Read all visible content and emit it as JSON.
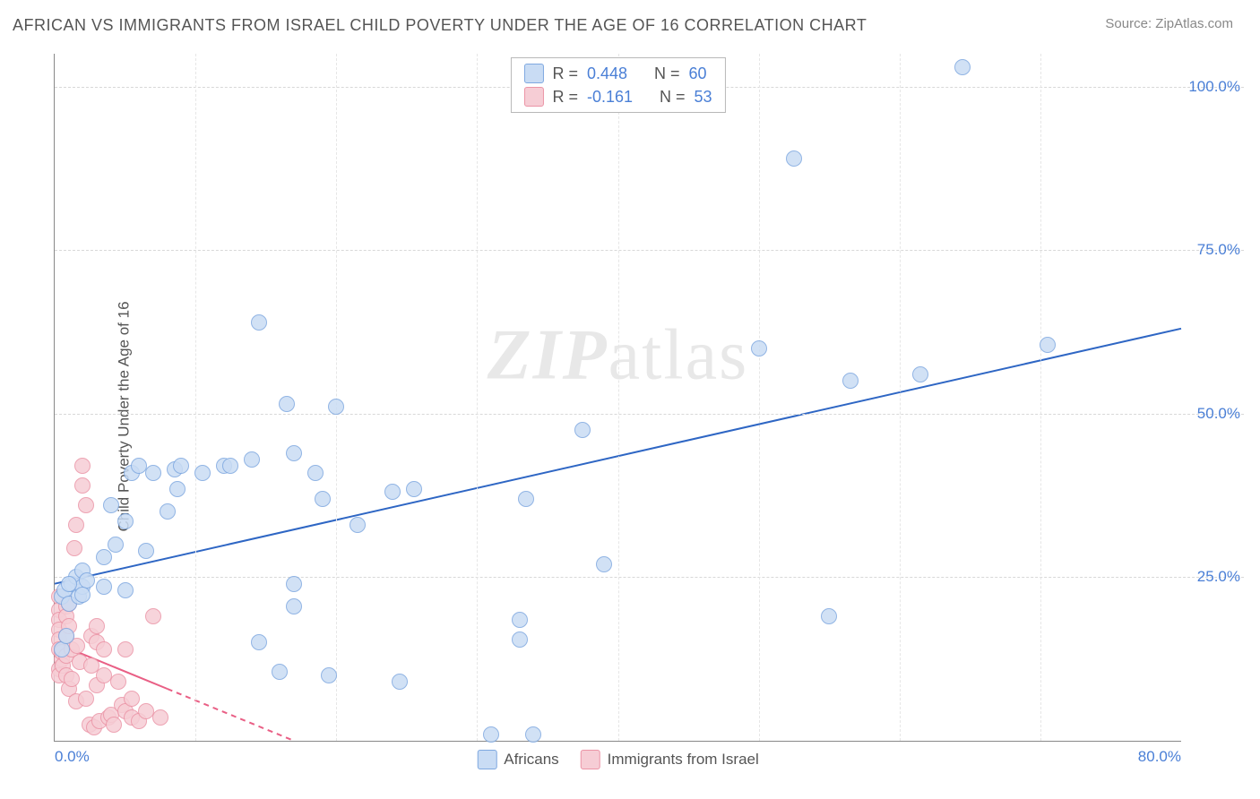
{
  "header": {
    "title": "AFRICAN VS IMMIGRANTS FROM ISRAEL CHILD POVERTY UNDER THE AGE OF 16 CORRELATION CHART",
    "source_prefix": "Source: ",
    "source_name": "ZipAtlas.com"
  },
  "ylabel": "Child Poverty Under the Age of 16",
  "watermark": {
    "z": "ZIP",
    "rest": "atlas"
  },
  "axes": {
    "xlim": [
      0,
      80
    ],
    "ylim": [
      0,
      105
    ],
    "yticks": [
      {
        "v": 25,
        "label": "25.0%"
      },
      {
        "v": 50,
        "label": "50.0%"
      },
      {
        "v": 75,
        "label": "75.0%"
      },
      {
        "v": 100,
        "label": "100.0%"
      }
    ],
    "xticks": [
      {
        "v": 0,
        "label": "0.0%",
        "cls": "first"
      },
      {
        "v": 80,
        "label": "80.0%",
        "cls": "last"
      }
    ],
    "xgrid": [
      10,
      20,
      30,
      40,
      50,
      60,
      70
    ],
    "label_color": "#4a7fd6",
    "grid_color": "#d8d8d8"
  },
  "series": {
    "africans": {
      "label": "Africans",
      "fill": "#c9dcf4",
      "stroke": "#7ea8e0",
      "line_color": "#2e66c4",
      "marker_r": 9,
      "R": "0.448",
      "N": "60",
      "trend": {
        "x1": 0,
        "y1": 24,
        "x2": 80,
        "y2": 63,
        "dash": false
      },
      "points": [
        [
          0.5,
          22
        ],
        [
          0.7,
          23
        ],
        [
          1.0,
          21
        ],
        [
          1.2,
          24
        ],
        [
          1.5,
          25
        ],
        [
          1.7,
          22
        ],
        [
          2.0,
          26
        ],
        [
          2.0,
          23.5
        ],
        [
          2.3,
          24.5
        ],
        [
          2.0,
          22.3
        ],
        [
          1.0,
          24
        ],
        [
          0.5,
          14
        ],
        [
          0.8,
          16
        ],
        [
          3.5,
          28
        ],
        [
          3.5,
          23.5
        ],
        [
          4.0,
          36
        ],
        [
          4.3,
          30
        ],
        [
          5.0,
          23
        ],
        [
          5.0,
          33.5
        ],
        [
          5.5,
          41
        ],
        [
          6.0,
          42
        ],
        [
          6.5,
          29
        ],
        [
          7.0,
          41
        ],
        [
          8.0,
          35
        ],
        [
          8.5,
          41.5
        ],
        [
          8.7,
          38.5
        ],
        [
          9.0,
          42
        ],
        [
          10.5,
          41
        ],
        [
          12.0,
          42
        ],
        [
          12.5,
          42
        ],
        [
          14.0,
          43
        ],
        [
          14.5,
          64
        ],
        [
          16.5,
          51.5
        ],
        [
          17.0,
          44
        ],
        [
          18.5,
          41
        ],
        [
          19.0,
          37
        ],
        [
          20.0,
          51
        ],
        [
          21.5,
          33
        ],
        [
          24.0,
          38
        ],
        [
          25.5,
          38.5
        ],
        [
          17.0,
          24
        ],
        [
          17.0,
          20.5
        ],
        [
          14.5,
          15
        ],
        [
          16.0,
          10.5
        ],
        [
          19.5,
          10
        ],
        [
          24.5,
          9
        ],
        [
          33.0,
          15.5
        ],
        [
          31.0,
          1.0
        ],
        [
          34.0,
          1.0
        ],
        [
          33.5,
          37
        ],
        [
          33.0,
          18.5
        ],
        [
          37.5,
          47.5
        ],
        [
          39.0,
          27
        ],
        [
          50.0,
          60
        ],
        [
          52.5,
          89
        ],
        [
          55.0,
          19
        ],
        [
          56.5,
          55
        ],
        [
          61.5,
          56
        ],
        [
          64.5,
          103
        ],
        [
          70.5,
          60.5
        ]
      ]
    },
    "israel": {
      "label": "Immigrants from Israel",
      "fill": "#f6cdd5",
      "stroke": "#eb94a6",
      "line_color": "#e95f85",
      "marker_r": 9,
      "R": "-0.161",
      "N": "53",
      "trend": {
        "x1": 0,
        "y1": 15,
        "x2": 17,
        "y2": 0,
        "dash_after": 8
      },
      "points": [
        [
          0.3,
          22
        ],
        [
          0.3,
          20
        ],
        [
          0.3,
          18.5
        ],
        [
          0.3,
          17
        ],
        [
          0.3,
          15.5
        ],
        [
          0.3,
          14
        ],
        [
          0.3,
          11
        ],
        [
          0.3,
          10
        ],
        [
          0.5,
          12.5
        ],
        [
          0.5,
          13.5
        ],
        [
          0.6,
          11.5
        ],
        [
          0.8,
          20.5
        ],
        [
          0.8,
          19
        ],
        [
          0.8,
          16
        ],
        [
          0.8,
          13
        ],
        [
          0.8,
          10
        ],
        [
          1.0,
          21
        ],
        [
          1.0,
          17.5
        ],
        [
          1.0,
          8
        ],
        [
          1.2,
          14
        ],
        [
          1.2,
          9.5
        ],
        [
          1.4,
          29.5
        ],
        [
          1.5,
          33
        ],
        [
          1.5,
          6
        ],
        [
          1.6,
          14.5
        ],
        [
          1.8,
          12
        ],
        [
          2.0,
          39
        ],
        [
          2.0,
          42
        ],
        [
          2.2,
          36
        ],
        [
          2.2,
          6.5
        ],
        [
          2.5,
          2.5
        ],
        [
          2.6,
          16
        ],
        [
          2.6,
          11.5
        ],
        [
          2.8,
          2
        ],
        [
          3.0,
          17.5
        ],
        [
          3.0,
          8.5
        ],
        [
          3.0,
          15
        ],
        [
          3.2,
          3
        ],
        [
          3.5,
          14
        ],
        [
          3.5,
          10
        ],
        [
          3.8,
          3.5
        ],
        [
          4.0,
          4
        ],
        [
          4.2,
          2.5
        ],
        [
          4.5,
          9
        ],
        [
          4.8,
          5.5
        ],
        [
          5.0,
          14
        ],
        [
          5.0,
          4.5
        ],
        [
          5.5,
          3.5
        ],
        [
          5.5,
          6.5
        ],
        [
          6.0,
          3
        ],
        [
          6.5,
          4.5
        ],
        [
          7.0,
          19
        ],
        [
          7.5,
          3.5
        ]
      ]
    }
  },
  "top_legend": {
    "r_label": "R =",
    "n_label": "N ="
  }
}
